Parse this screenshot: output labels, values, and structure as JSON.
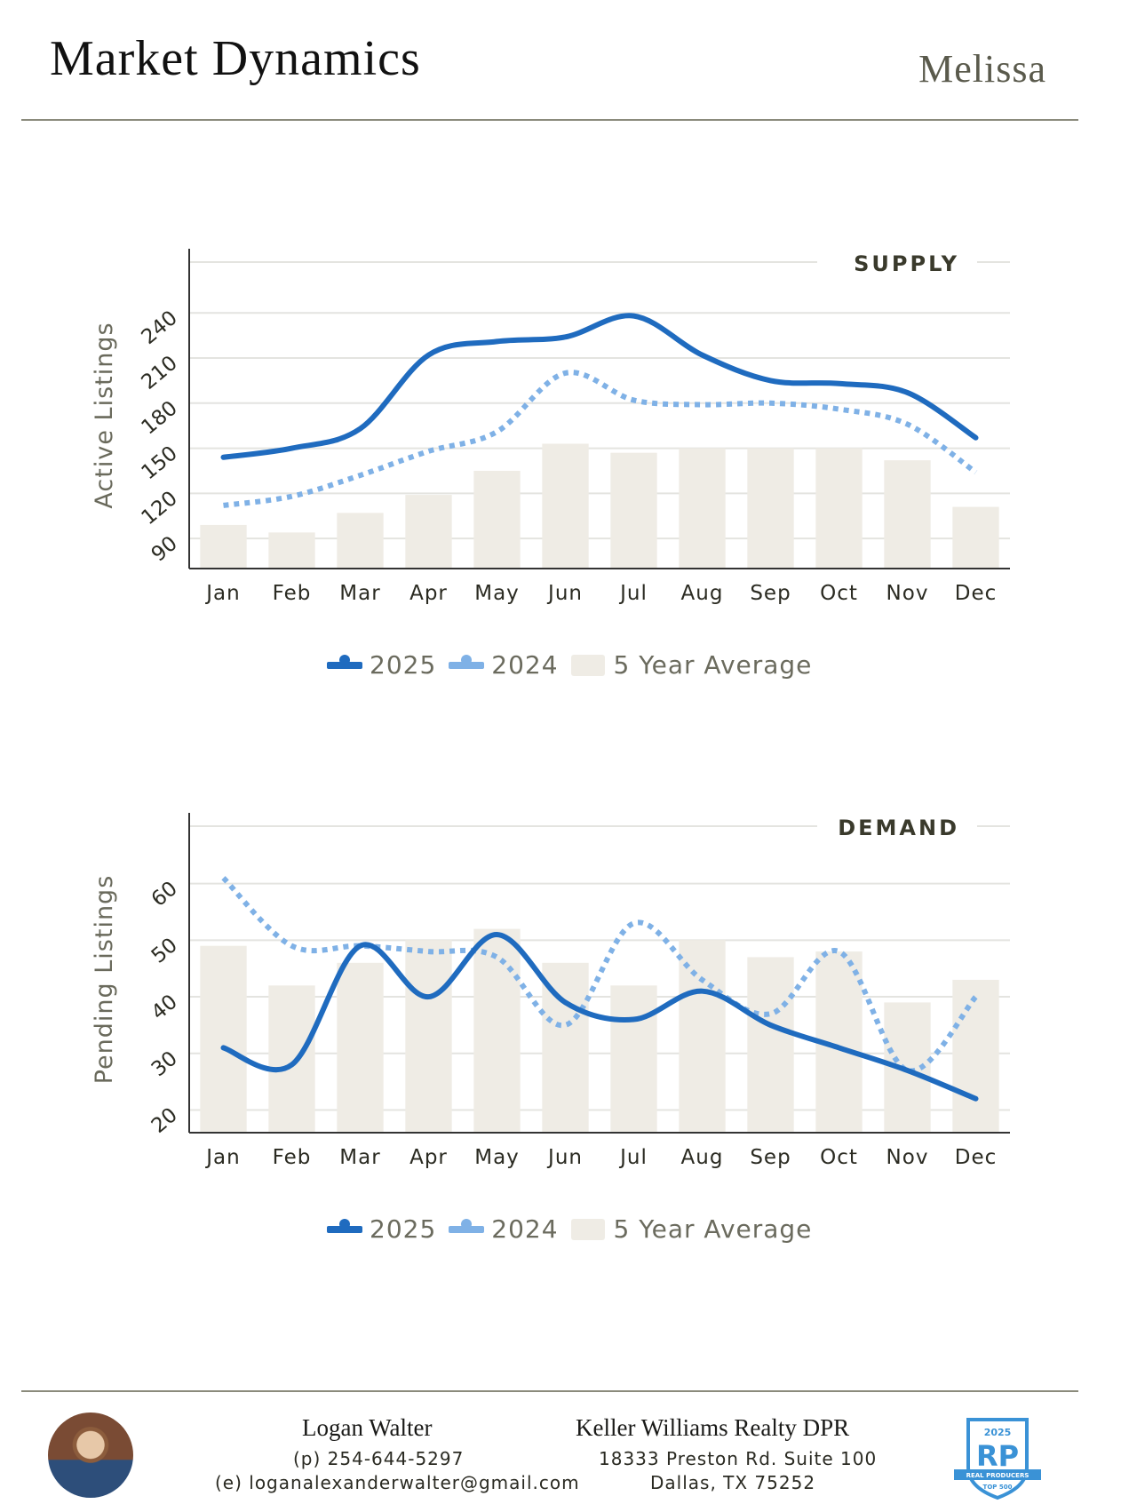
{
  "header": {
    "title": "Market Dynamics",
    "city": "Melissa"
  },
  "colors": {
    "y2025": "#1f6bbf",
    "y2024": "#7fb1e6",
    "avg": "#efece5",
    "grid": "#e4e4e0",
    "axis": "#333"
  },
  "legend": {
    "s2025": "2025",
    "s2024": "2024",
    "avg": "5 Year Average"
  },
  "chart_data": [
    {
      "type": "line+bar",
      "section_title": "SUPPLY",
      "ylabel": "Active Listings",
      "categories": [
        "Jan",
        "Feb",
        "Mar",
        "Apr",
        "May",
        "Jun",
        "Jul",
        "Aug",
        "Sep",
        "Oct",
        "Nov",
        "Dec"
      ],
      "yticks": [
        90,
        120,
        150,
        180,
        210,
        240
      ],
      "ylim": [
        70,
        262
      ],
      "series": [
        {
          "name": "2025",
          "style": "solid",
          "values": [
            144,
            150,
            163,
            212,
            221,
            224,
            238,
            212,
            195,
            193,
            187,
            157
          ]
        },
        {
          "name": "2024",
          "style": "dotted",
          "values": [
            112,
            118,
            132,
            148,
            161,
            200,
            182,
            179,
            180,
            176,
            166,
            134
          ]
        },
        {
          "name": "5 Year Average",
          "style": "bar",
          "values": [
            99,
            94,
            107,
            119,
            135,
            153,
            147,
            150,
            150,
            150,
            142,
            111
          ]
        }
      ]
    },
    {
      "type": "line+bar",
      "section_title": "DEMAND",
      "ylabel": "Pending Listings",
      "categories": [
        "Jan",
        "Feb",
        "Mar",
        "Apr",
        "May",
        "Jun",
        "Jul",
        "Aug",
        "Sep",
        "Oct",
        "Nov",
        "Dec"
      ],
      "yticks": [
        20,
        30,
        40,
        50,
        60
      ],
      "ylim": [
        16,
        67
      ],
      "series": [
        {
          "name": "2025",
          "style": "solid",
          "values": [
            31,
            28,
            49,
            40,
            51,
            39,
            36,
            41,
            35,
            31,
            27,
            22
          ]
        },
        {
          "name": "2024",
          "style": "dotted",
          "values": [
            61,
            49,
            49,
            48,
            47,
            35,
            53,
            43,
            37,
            48,
            27,
            40
          ]
        },
        {
          "name": "5 Year Average",
          "style": "bar",
          "values": [
            49,
            42,
            46,
            50,
            52,
            46,
            42,
            50,
            47,
            48,
            39,
            43
          ]
        }
      ]
    }
  ],
  "footer": {
    "agent_name": "Logan Walter",
    "agent_phone": "(p) 254-644-5297",
    "agent_email": "(e) loganalexanderwalter@gmail.com",
    "firm_name": "Keller Williams Realty DPR",
    "firm_addr1": "18333 Preston Rd. Suite 100",
    "firm_addr2": "Dallas, TX 75252",
    "badge_year": "2025",
    "badge_mark": "RP",
    "badge_line1": "REAL PRODUCERS",
    "badge_line2": "TOP 500"
  }
}
